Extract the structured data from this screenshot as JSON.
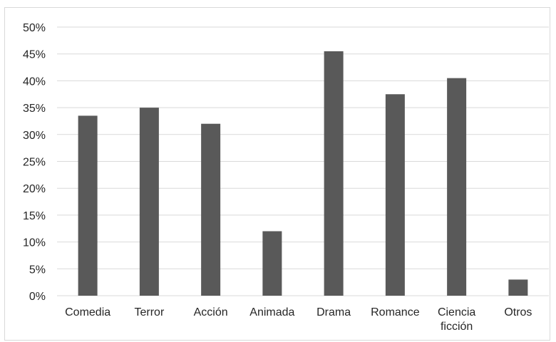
{
  "chart_data": {
    "type": "bar",
    "title": "",
    "xlabel": "",
    "ylabel": "",
    "categories": [
      [
        "Comedia"
      ],
      [
        "Terror"
      ],
      [
        "Acción"
      ],
      [
        "Animada"
      ],
      [
        "Drama"
      ],
      [
        "Romance"
      ],
      [
        "Ciencia",
        "ficción"
      ],
      [
        "Otros"
      ]
    ],
    "values": [
      33.5,
      35.0,
      32.0,
      12.0,
      45.5,
      37.5,
      40.5,
      3.0
    ],
    "ylim": [
      0,
      50
    ],
    "yticks": [
      "0%",
      "5%",
      "10%",
      "15%",
      "20%",
      "25%",
      "30%",
      "35%",
      "40%",
      "45%",
      "50%"
    ],
    "grid": true,
    "legend": "none",
    "bar_color": "#595959",
    "grid_color": "#d9d9d9"
  }
}
